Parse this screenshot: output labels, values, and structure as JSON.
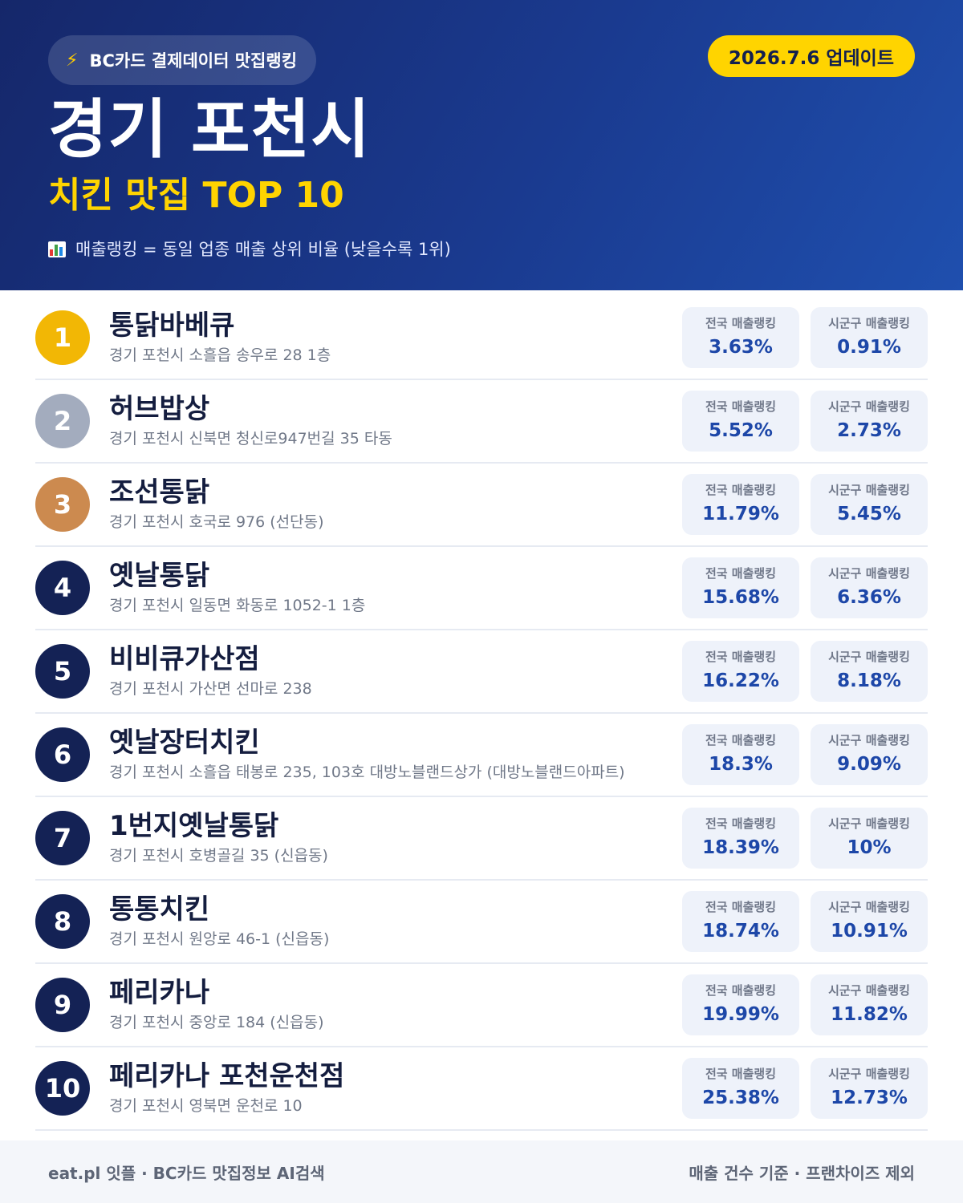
{
  "header": {
    "brand_icon": "lightning-icon",
    "brand_label": "BC카드 결제데이터 맛집랭킹",
    "update_label": "2026.7.6 업데이트",
    "city": "경기 포천시",
    "subtitle": "치킨 맛집 TOP 10",
    "note_icon": "bar-chart-icon",
    "note": "매출랭킹 = 동일 업종 매출 상위 비율 (낮을수록 1위)"
  },
  "colors": {
    "header_bg": "#1a3a8f",
    "accent_yellow": "#ffd400",
    "rank_gold": "#f2b705",
    "rank_silver": "#a3acbe",
    "rank_bronze": "#cc8a4f",
    "rank_default": "#142255",
    "stat_value": "#1d47a8"
  },
  "labels": {
    "national": "전국 매출랭킹",
    "local": "시군구 매출랭킹"
  },
  "restaurants": [
    {
      "rank": "1",
      "name": "통닭바베큐",
      "address": "경기 포천시 소흘읍 송우로 28 1층",
      "national": "3.63%",
      "local": "0.91%"
    },
    {
      "rank": "2",
      "name": "허브밥상",
      "address": "경기 포천시 신북면 청신로947번길 35 타동",
      "national": "5.52%",
      "local": "2.73%"
    },
    {
      "rank": "3",
      "name": "조선통닭",
      "address": "경기 포천시 호국로 976 (선단동)",
      "national": "11.79%",
      "local": "5.45%"
    },
    {
      "rank": "4",
      "name": "옛날통닭",
      "address": "경기 포천시 일동면 화동로 1052-1 1층",
      "national": "15.68%",
      "local": "6.36%"
    },
    {
      "rank": "5",
      "name": "비비큐가산점",
      "address": "경기 포천시 가산면 선마로 238",
      "national": "16.22%",
      "local": "8.18%"
    },
    {
      "rank": "6",
      "name": "옛날장터치킨",
      "address": "경기 포천시 소흘읍 태봉로 235, 103호 대방노블랜드상가 (대방노블랜드아파트)",
      "national": "18.3%",
      "local": "9.09%"
    },
    {
      "rank": "7",
      "name": "1번지옛날통닭",
      "address": "경기 포천시 호병골길 35 (신읍동)",
      "national": "18.39%",
      "local": "10%"
    },
    {
      "rank": "8",
      "name": "통통치킨",
      "address": "경기 포천시 원앙로 46-1 (신읍동)",
      "national": "18.74%",
      "local": "10.91%"
    },
    {
      "rank": "9",
      "name": "페리카나",
      "address": "경기 포천시 중앙로 184 (신읍동)",
      "national": "19.99%",
      "local": "11.82%"
    },
    {
      "rank": "10",
      "name": "페리카나 포천운천점",
      "address": "경기 포천시 영북면 운천로 10",
      "national": "25.38%",
      "local": "12.73%"
    }
  ],
  "footer": {
    "left": "eat.pl 잇플 · BC카드 맛집정보 AI검색",
    "right": "매출 건수 기준 · 프랜차이즈 제외"
  }
}
